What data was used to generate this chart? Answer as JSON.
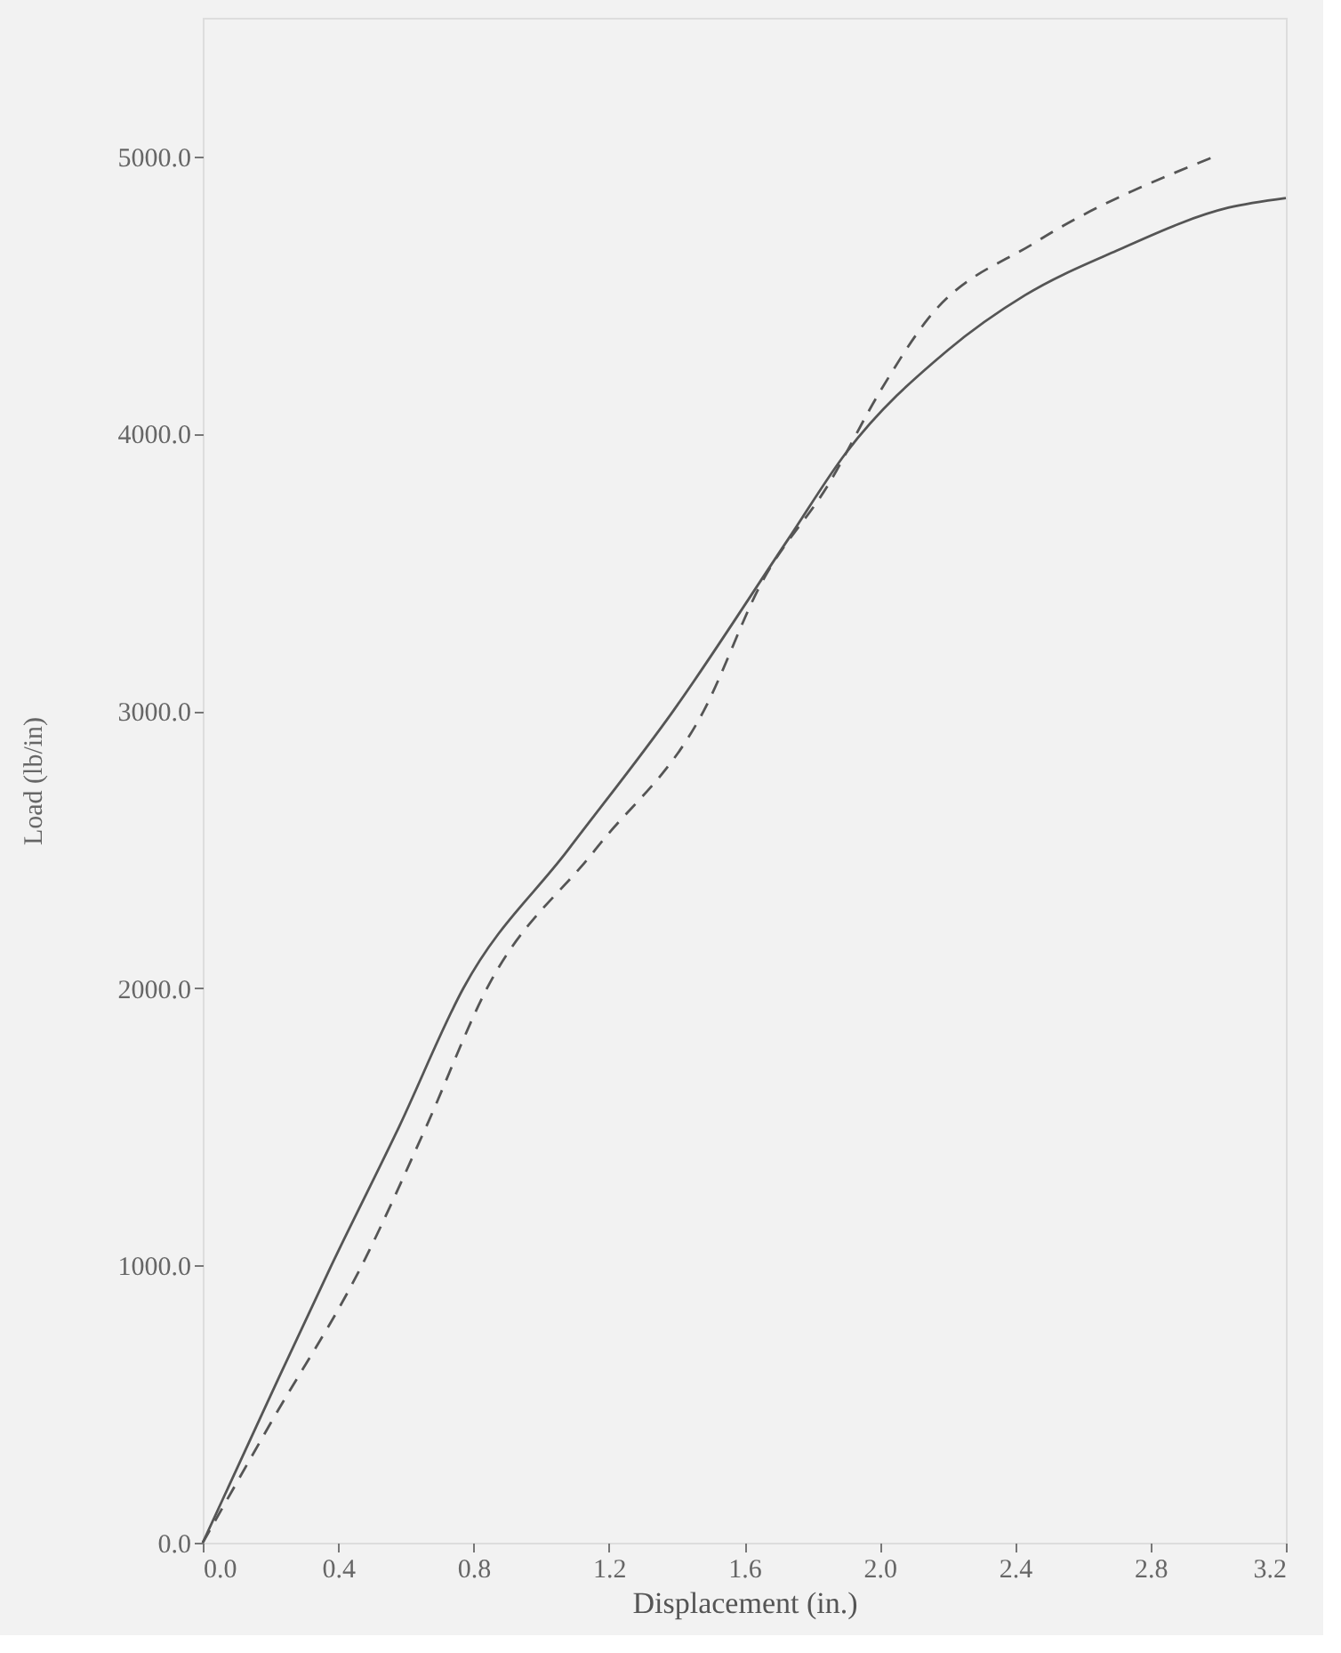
{
  "chart_data": {
    "type": "line",
    "xlabel": "Displacement (in.)",
    "ylabel": "Load (lb/in)",
    "xlim": [
      0,
      3.2
    ],
    "ylim": [
      0,
      5500
    ],
    "xticks": [
      {
        "value": 0,
        "label": "0.0"
      },
      0.4,
      0.8,
      1.2,
      1.6,
      {
        "value": 2,
        "label": "2.0"
      },
      2.4,
      2.8,
      3.2
    ],
    "yticks": [
      {
        "value": 0,
        "label": "0.0"
      },
      {
        "value": 1000,
        "label": "1000.0"
      },
      {
        "value": 2000,
        "label": "2000.0"
      },
      {
        "value": 3000,
        "label": "3000.0"
      },
      {
        "value": 4000,
        "label": "4000.0"
      },
      {
        "value": 5000,
        "label": "5000.0"
      }
    ],
    "grid": false,
    "series": [
      {
        "color": "#555555",
        "line_style": "solid",
        "x": [
          0,
          0.2,
          0.38,
          0.58,
          0.77,
          1.08,
          1.39,
          1.73,
          1.9,
          2.2,
          2.43,
          2.7,
          3.03,
          3.2
        ],
        "values": [
          0,
          530,
          1000,
          1500,
          2000,
          2500,
          3000,
          3620,
          3930,
          4300,
          4500,
          4660,
          4815,
          4850
        ]
      },
      {
        "color": "#555555",
        "line_style": "dashed",
        "x": [
          0,
          0.2,
          0.47,
          0.66,
          0.84,
          1.16,
          1.48,
          1.65,
          1.85,
          2.0,
          2.14,
          2.46,
          3.0
        ],
        "values": [
          0,
          430,
          1000,
          1500,
          2000,
          2500,
          3000,
          3460,
          3820,
          4150,
          4410,
          4690,
          5005
        ]
      }
    ]
  }
}
